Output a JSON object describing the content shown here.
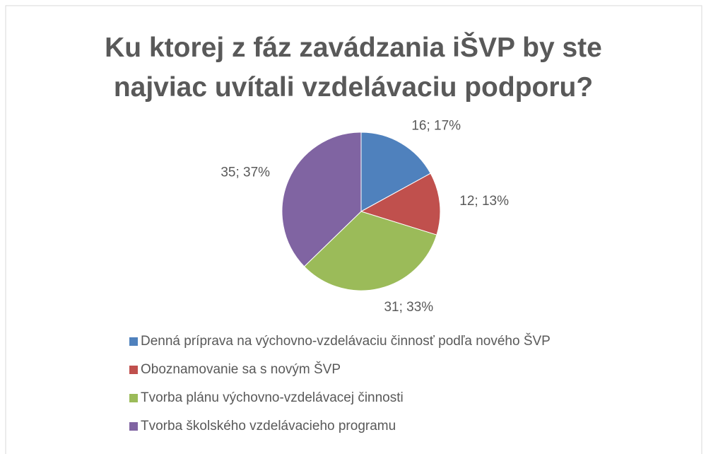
{
  "chart_data": {
    "type": "pie",
    "title": "Ku ktorej z fáz zavádzania iŠVP by ste najviac uvítali vzdelávaciu podporu?",
    "categories": [
      "Denná príprava na výchovno-vzdelávaciu činnosť podľa nového ŠVP",
      "Oboznamovanie sa s novým ŠVP",
      "Tvorba plánu výchovno-vzdelávacej činnosti",
      "Tvorba školského vzdelávacieho programu"
    ],
    "values": [
      16,
      12,
      31,
      35
    ],
    "value_labels": [
      "16; 17%",
      "12; 13%",
      "31; 33%",
      "35; 37%"
    ],
    "colors": [
      "#4f81bd",
      "#c0504d",
      "#9bbb59",
      "#8064a2"
    ],
    "legend": "bottom"
  }
}
